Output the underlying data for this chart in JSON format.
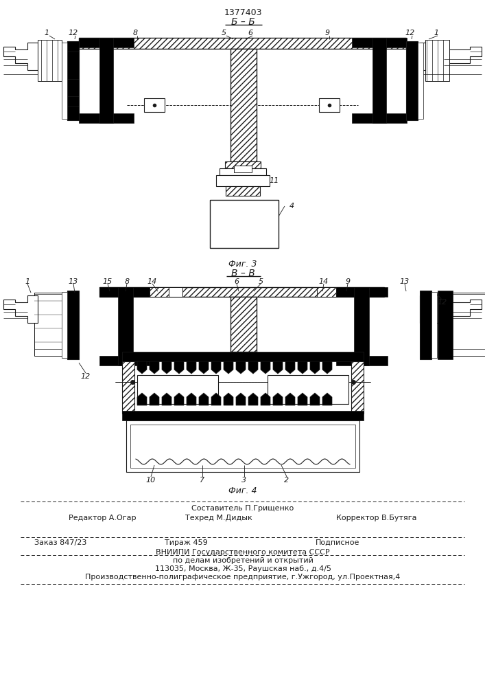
{
  "title_number": "1377403",
  "section_bb": "Б – Б",
  "section_vv": "В – В",
  "fig3_label": "Фиг. 3",
  "fig4_label": "Фиг. 4",
  "line_color": "#1a1a1a",
  "text_block": {
    "sostavitel": "Составитель П.Грищенко",
    "redaktor": "Редактор А.Огар",
    "tehred": "Техред М.Дидык",
    "korrektor": "Корректор В.Бутяга",
    "zakaz": "Заказ 847/23",
    "tirazh": "Тираж 459",
    "podpisnoe": "Подписное",
    "vniip1": "ВНИИПИ Государственного комитета СССР",
    "vniip2": "по делам изобретений и открытий",
    "vniip3": "113035, Москва, Ж-35, Раушская наб., д.4/5",
    "footer": "Производственно-полиграфическое предприятие, г.Ужгород, ул.Проектная,4"
  }
}
